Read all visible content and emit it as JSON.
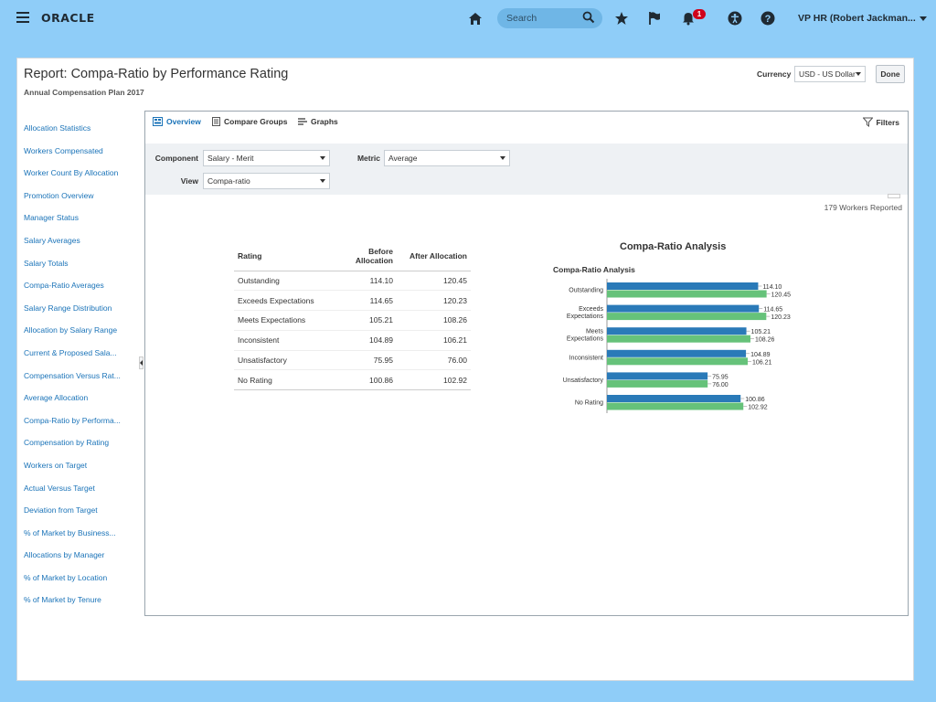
{
  "header": {
    "logo": "ORACLE",
    "search_placeholder": "Search",
    "notification_count": "1",
    "user_label": "VP HR (Robert Jackman..."
  },
  "report": {
    "title": "Report: Compa-Ratio by Performance Rating",
    "subtitle": "Annual Compensation Plan 2017",
    "currency_label": "Currency",
    "currency_value": "USD - US Dollar",
    "done_label": "Done"
  },
  "sidebar": {
    "items": [
      "Allocation Statistics",
      "Workers Compensated",
      "Worker Count By Allocation",
      "Promotion Overview",
      "Manager Status",
      "Salary Averages",
      "Salary Totals",
      "Compa-Ratio Averages",
      "Salary Range Distribution",
      "Allocation by Salary Range",
      "Current & Proposed Sala...",
      "Compensation Versus Rat...",
      "Average Allocation",
      "Compa-Ratio by Performa...",
      "Compensation by Rating",
      "Workers on Target",
      "Actual Versus Target",
      "Deviation from Target",
      "% of Market by Business...",
      "Allocations by Manager",
      "% of Market by Location",
      "% of Market by Tenure"
    ]
  },
  "tabs": {
    "overview": "Overview",
    "compare_groups": "Compare Groups",
    "graphs": "Graphs",
    "filters": "Filters"
  },
  "filters": {
    "component_label": "Component",
    "component_value": "Salary - Merit",
    "metric_label": "Metric",
    "metric_value": "Average",
    "view_label": "View",
    "view_value": "Compa-ratio"
  },
  "workers_reported": "179  Workers  Reported",
  "table": {
    "headers": [
      "Rating",
      "Before Allocation",
      "After Allocation"
    ],
    "rows": [
      [
        "Outstanding",
        "114.10",
        "120.45"
      ],
      [
        "Exceeds Expectations",
        "114.65",
        "120.23"
      ],
      [
        "Meets Expectations",
        "105.21",
        "108.26"
      ],
      [
        "Inconsistent",
        "104.89",
        "106.21"
      ],
      [
        "Unsatisfactory",
        "75.95",
        "76.00"
      ],
      [
        "No Rating",
        "100.86",
        "102.92"
      ]
    ]
  },
  "chart_data": {
    "type": "bar",
    "orientation": "horizontal",
    "title": "Compa-Ratio Analysis",
    "inner_title": "Compa-Ratio Analysis",
    "categories": [
      [
        "Outstanding"
      ],
      [
        "Exceeds",
        "Expectations"
      ],
      [
        "Meets",
        "Expectations"
      ],
      [
        "Inconsistent"
      ],
      [
        "Unsatisfactory"
      ],
      [
        "No Rating"
      ]
    ],
    "series": [
      {
        "name": "Before Allocation",
        "color": "#2a7ab8",
        "values": [
          114.1,
          114.65,
          105.21,
          104.89,
          75.95,
          100.86
        ]
      },
      {
        "name": "After Allocation",
        "color": "#66c27a",
        "values": [
          120.45,
          120.23,
          108.26,
          106.21,
          76.0,
          102.92
        ]
      }
    ],
    "value_labels": [
      [
        "114.10",
        "114.65",
        "105.21",
        "104.89",
        "75.95",
        "100.86"
      ],
      [
        "120.45",
        "120.23",
        "108.26",
        "106.21",
        "76.00",
        "102.92"
      ]
    ],
    "xlim": [
      0,
      140
    ],
    "xticks": [
      "0",
      "20",
      "40",
      "60",
      "80",
      "100",
      "120",
      "140"
    ],
    "legend": "bottom",
    "grid": false
  }
}
